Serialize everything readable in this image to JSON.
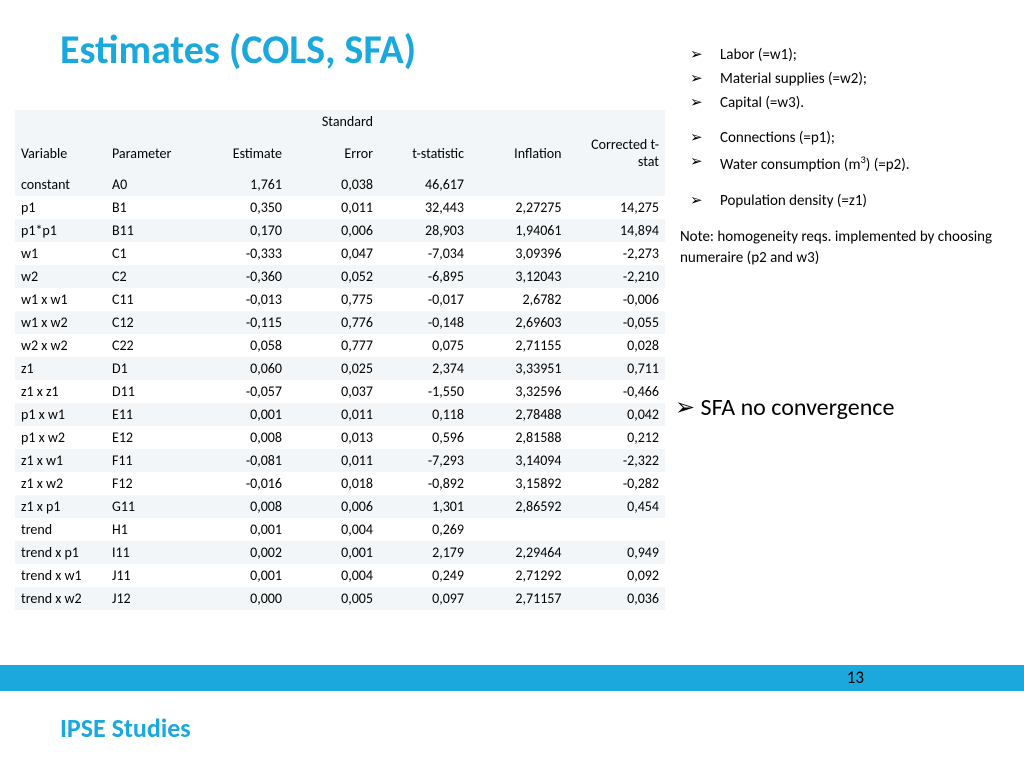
{
  "title": "Estimates (COLS, SFA)",
  "table": {
    "header_row1": [
      "",
      "",
      "",
      "Standard",
      "",
      "",
      ""
    ],
    "header_row2": [
      "Variable",
      "Parameter",
      "Estimate",
      "Error",
      "t-statistic",
      "Inflation",
      "Corrected t-stat"
    ],
    "rows": [
      [
        "constant",
        "A0",
        "1,761",
        "0,038",
        "46,617",
        "",
        ""
      ],
      [
        "p1",
        "B1",
        "0,350",
        "0,011",
        "32,443",
        "2,27275",
        "14,275"
      ],
      [
        "p1*p1",
        "B11",
        "0,170",
        "0,006",
        "28,903",
        "1,94061",
        "14,894"
      ],
      [
        "w1",
        "C1",
        "-0,333",
        "0,047",
        "-7,034",
        "3,09396",
        "-2,273"
      ],
      [
        "w2",
        "C2",
        "-0,360",
        "0,052",
        "-6,895",
        "3,12043",
        "-2,210"
      ],
      [
        "w1 x w1",
        "C11",
        "-0,013",
        "0,775",
        "-0,017",
        "2,6782",
        "-0,006"
      ],
      [
        "w1 x w2",
        "C12",
        "-0,115",
        "0,776",
        "-0,148",
        "2,69603",
        "-0,055"
      ],
      [
        "w2 x w2",
        "C22",
        "0,058",
        "0,777",
        "0,075",
        "2,71155",
        "0,028"
      ],
      [
        "z1",
        "D1",
        "0,060",
        "0,025",
        "2,374",
        "3,33951",
        "0,711"
      ],
      [
        "z1 x z1",
        "D11",
        "-0,057",
        "0,037",
        "-1,550",
        "3,32596",
        "-0,466"
      ],
      [
        "p1 x w1",
        "E11",
        "0,001",
        "0,011",
        "0,118",
        "2,78488",
        "0,042"
      ],
      [
        "p1 x w2",
        "E12",
        "0,008",
        "0,013",
        "0,596",
        "2,81588",
        "0,212"
      ],
      [
        "z1 x w1",
        "F11",
        "-0,081",
        "0,011",
        "-7,293",
        "3,14094",
        "-2,322"
      ],
      [
        "z1 x w2",
        "F12",
        "-0,016",
        "0,018",
        "-0,892",
        "3,15892",
        "-0,282"
      ],
      [
        "z1 x p1",
        "G11",
        "0,008",
        "0,006",
        "1,301",
        "2,86592",
        "0,454"
      ],
      [
        "trend",
        "H1",
        "0,001",
        "0,004",
        "0,269",
        "",
        ""
      ],
      [
        "trend x p1",
        "I11",
        "0,002",
        "0,001",
        "2,179",
        "2,29464",
        "0,949"
      ],
      [
        "trend x w1",
        "J11",
        "0,001",
        "0,004",
        "0,249",
        "2,71292",
        "0,092"
      ],
      [
        "trend x w2",
        "J12",
        "0,000",
        "0,005",
        "0,097",
        "2,71157",
        "0,036"
      ]
    ]
  },
  "sidebar": {
    "group1": [
      "Labor (=w1);",
      "Material supplies (=w2);",
      "Capital (=w3)."
    ],
    "group2": [
      "Connections (=p1);",
      "Water consumption (m³) (=p2)."
    ],
    "group3": [
      "Population density (=z1)"
    ],
    "note": "Note: homogeneity reqs. implemented by choosing numeraire (p2 and w3)"
  },
  "sfa_text": "SFA no convergence",
  "page_number": "13",
  "footer": "IPSE Studies",
  "colors": {
    "accent": "#1ba8dc",
    "row_alt": "#f3f6f8",
    "text": "#000000",
    "background": "#ffffff"
  },
  "col_widths": [
    "14%",
    "14%",
    "14%",
    "14%",
    "14%",
    "15%",
    "15%"
  ]
}
